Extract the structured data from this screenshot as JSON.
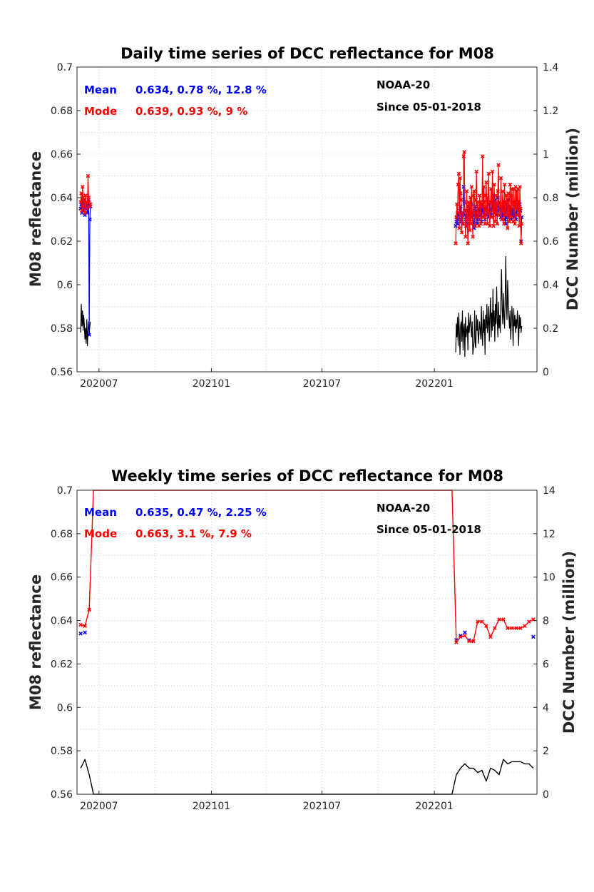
{
  "chart_data": [
    {
      "type": "line",
      "title": "Daily time series of DCC reflectance for M08",
      "ylabel": "M08 reflectance",
      "y2label": "DCC Number (million)",
      "ylim": [
        0.56,
        0.7
      ],
      "y2lim": [
        0,
        1.4
      ],
      "yticks": [
        "0.56",
        "0.58",
        "0.6",
        "0.62",
        "0.64",
        "0.66",
        "0.68",
        "0.7"
      ],
      "y2ticks": [
        "0",
        "0.2",
        "0.4",
        "0.6",
        "0.8",
        "1",
        "1.2",
        "1.4"
      ],
      "xticks": [
        "202007",
        "202101",
        "202107",
        "202201"
      ],
      "grid": true,
      "annotations": {
        "mean_label": "Mean",
        "mean_value": "0.634, 0.78 %, 12.8 %",
        "mode_label": "Mode",
        "mode_value": "0.639, 0.93 %, 9 %",
        "satellite": "NOAA-20",
        "since": "Since 05-01-2018"
      },
      "colors": {
        "mean": "#0000ff",
        "mode": "#ff0000",
        "count": "#000000"
      },
      "segments": [
        {
          "start": "2020-06-01",
          "step_days": 1,
          "mean": [
            0.635,
            0.637,
            0.633,
            0.638,
            0.639,
            0.634,
            0.636,
            0.632,
            0.637,
            0.638,
            0.635,
            0.633,
            0.636,
            0.639,
            0.577,
            0.63,
            0.636
          ],
          "mode": [
            0.638,
            0.642,
            0.634,
            0.645,
            0.64,
            0.636,
            0.639,
            0.633,
            0.641,
            0.637,
            0.638,
            0.635,
            0.65,
            0.64,
            0.638,
            0.636,
            0.637
          ],
          "count": [
            0.18,
            0.31,
            0.21,
            0.28,
            0.19,
            0.26,
            0.22,
            0.15,
            0.2,
            0.13,
            0.24,
            0.12,
            0.19,
            0.23,
            0.17,
            0.21,
            0.23
          ]
        },
        {
          "start": "2022-02-05",
          "step_days": 1,
          "mean": [
            0.627,
            0.629,
            0.631,
            0.628,
            0.632,
            0.633,
            0.63,
            0.634,
            0.636,
            0.629,
            0.631,
            0.628,
            0.633,
            0.645,
            0.638,
            0.632,
            0.63,
            0.627,
            0.634,
            0.631,
            0.628,
            0.636,
            0.632,
            0.63,
            0.635,
            0.633,
            0.637,
            0.631,
            0.634,
            0.629,
            0.626,
            0.632,
            0.636,
            0.634,
            0.631,
            0.628,
            0.633,
            0.635,
            0.63,
            0.634,
            0.637,
            0.632,
            0.629,
            0.636,
            0.634,
            0.631,
            0.638,
            0.633,
            0.63,
            0.635,
            0.636,
            0.632,
            0.639,
            0.634,
            0.631,
            0.637,
            0.633,
            0.635,
            0.632,
            0.638,
            0.634,
            0.641,
            0.636,
            0.633,
            0.639,
            0.635,
            0.632,
            0.637,
            0.634,
            0.64,
            0.636,
            0.632,
            0.638,
            0.635,
            0.631,
            0.633,
            0.63,
            0.636,
            0.634,
            0.632,
            0.638,
            0.63,
            0.628,
            0.637,
            0.634,
            0.631,
            0.639,
            0.635,
            0.632,
            0.636,
            0.633,
            0.63,
            0.635,
            0.632,
            0.638,
            0.634,
            0.631,
            0.637,
            0.633,
            0.63,
            0.636,
            0.632,
            0.638,
            0.635,
            0.632,
            0.637,
            0.634,
            0.62,
            0.631
          ],
          "mode": [
            0.619,
            0.631,
            0.637,
            0.633,
            0.646,
            0.651,
            0.626,
            0.649,
            0.642,
            0.639,
            0.624,
            0.633,
            0.628,
            0.659,
            0.661,
            0.634,
            0.622,
            0.63,
            0.643,
            0.627,
            0.619,
            0.638,
            0.637,
            0.625,
            0.64,
            0.628,
            0.645,
            0.634,
            0.622,
            0.641,
            0.643,
            0.633,
            0.627,
            0.639,
            0.652,
            0.631,
            0.638,
            0.633,
            0.627,
            0.641,
            0.638,
            0.628,
            0.636,
            0.637,
            0.659,
            0.631,
            0.645,
            0.632,
            0.628,
            0.641,
            0.647,
            0.634,
            0.628,
            0.64,
            0.651,
            0.633,
            0.627,
            0.638,
            0.644,
            0.631,
            0.652,
            0.634,
            0.627,
            0.646,
            0.636,
            0.629,
            0.641,
            0.637,
            0.628,
            0.643,
            0.655,
            0.632,
            0.638,
            0.636,
            0.649,
            0.63,
            0.634,
            0.643,
            0.637,
            0.628,
            0.646,
            0.634,
            0.632,
            0.641,
            0.638,
            0.626,
            0.642,
            0.635,
            0.629,
            0.646,
            0.641,
            0.631,
            0.644,
            0.637,
            0.629,
            0.644,
            0.638,
            0.628,
            0.645,
            0.635,
            0.643,
            0.632,
            0.644,
            0.634,
            0.627,
            0.645,
            0.635,
            0.619,
            0.628
          ],
          "count": [
            0.09,
            0.22,
            0.16,
            0.25,
            0.12,
            0.27,
            0.18,
            0.08,
            0.21,
            0.23,
            0.14,
            0.28,
            0.1,
            0.2,
            0.22,
            0.07,
            0.25,
            0.16,
            0.19,
            0.21,
            0.1,
            0.27,
            0.18,
            0.22,
            0.26,
            0.2,
            0.16,
            0.23,
            0.08,
            0.11,
            0.14,
            0.28,
            0.12,
            0.11,
            0.26,
            0.19,
            0.24,
            0.13,
            0.17,
            0.23,
            0.2,
            0.15,
            0.3,
            0.17,
            0.12,
            0.28,
            0.18,
            0.24,
            0.08,
            0.26,
            0.2,
            0.31,
            0.18,
            0.22,
            0.3,
            0.14,
            0.25,
            0.34,
            0.16,
            0.27,
            0.19,
            0.38,
            0.21,
            0.28,
            0.14,
            0.31,
            0.22,
            0.39,
            0.24,
            0.16,
            0.32,
            0.2,
            0.26,
            0.18,
            0.34,
            0.47,
            0.29,
            0.22,
            0.36,
            0.26,
            0.2,
            0.36,
            0.53,
            0.3,
            0.24,
            0.42,
            0.34,
            0.26,
            0.2,
            0.28,
            0.15,
            0.22,
            0.3,
            0.24,
            0.12,
            0.29,
            0.21,
            0.26,
            0.18,
            0.24,
            0.2,
            0.28,
            0.22,
            0.12,
            0.26,
            0.2,
            0.25,
            0.18,
            0.21
          ]
        }
      ]
    },
    {
      "type": "line",
      "title": "Weekly time series of DCC reflectance for M08",
      "ylabel": "M08 reflectance",
      "y2label": "DCC Number (million)",
      "ylim": [
        0.56,
        0.7
      ],
      "y2lim": [
        0,
        14
      ],
      "yticks": [
        "0.56",
        "0.58",
        "0.6",
        "0.62",
        "0.64",
        "0.66",
        "0.68",
        "0.7"
      ],
      "y2ticks": [
        "0",
        "2",
        "4",
        "6",
        "8",
        "10",
        "12",
        "14"
      ],
      "xticks": [
        "202007",
        "202101",
        "202107",
        "202201"
      ],
      "grid": true,
      "annotations": {
        "mean_label": "Mean",
        "mean_value": "0.635, 0.47 %, 2.25 %",
        "mode_label": "Mode",
        "mode_value": "0.663, 3.1 %, 7.9 %",
        "satellite": "NOAA-20",
        "since": "Since 05-01-2018"
      },
      "colors": {
        "mean": "#0000ff",
        "mode": "#ff0000",
        "count": "#000000"
      },
      "mean_points": [
        {
          "date": "2020-06-01",
          "value": 0.634
        },
        {
          "date": "2020-06-08",
          "value": 0.6345
        },
        {
          "date": "2022-02-06",
          "value": 0.631
        },
        {
          "date": "2022-02-13",
          "value": 0.633
        },
        {
          "date": "2022-02-20",
          "value": 0.6345
        },
        {
          "date": "2022-02-27",
          "value": 0.631
        },
        {
          "date": "2022-03-06",
          "value": 0.6305
        },
        {
          "date": "2022-06-12",
          "value": 0.6325
        }
      ],
      "mode_series": [
        {
          "date": "2020-06-01",
          "value": 0.638
        },
        {
          "date": "2020-06-08",
          "value": 0.6375
        },
        {
          "date": "2020-06-15",
          "value": 0.645
        },
        {
          "date": "2020-06-22",
          "value": 0.75
        },
        {
          "date": "2022-01-30",
          "value": 0.75
        },
        {
          "date": "2022-02-06",
          "value": 0.63
        },
        {
          "date": "2022-02-13",
          "value": 0.6325
        },
        {
          "date": "2022-02-20",
          "value": 0.633
        },
        {
          "date": "2022-02-27",
          "value": 0.6305
        },
        {
          "date": "2022-03-06",
          "value": 0.6305
        },
        {
          "date": "2022-03-13",
          "value": 0.6395
        },
        {
          "date": "2022-03-20",
          "value": 0.6395
        },
        {
          "date": "2022-03-27",
          "value": 0.6375
        },
        {
          "date": "2022-04-03",
          "value": 0.6325
        },
        {
          "date": "2022-04-10",
          "value": 0.6365
        },
        {
          "date": "2022-04-17",
          "value": 0.6405
        },
        {
          "date": "2022-04-24",
          "value": 0.6405
        },
        {
          "date": "2022-05-01",
          "value": 0.6365
        },
        {
          "date": "2022-05-08",
          "value": 0.6365
        },
        {
          "date": "2022-05-15",
          "value": 0.6365
        },
        {
          "date": "2022-05-22",
          "value": 0.6365
        },
        {
          "date": "2022-05-29",
          "value": 0.6375
        },
        {
          "date": "2022-06-05",
          "value": 0.6395
        },
        {
          "date": "2022-06-12",
          "value": 0.6405
        }
      ],
      "count_series": [
        {
          "date": "2020-06-01",
          "value": 1.2
        },
        {
          "date": "2020-06-08",
          "value": 1.6
        },
        {
          "date": "2020-06-15",
          "value": 0.9
        },
        {
          "date": "2020-06-22",
          "value": 0
        },
        {
          "date": "2022-01-30",
          "value": 0
        },
        {
          "date": "2022-02-06",
          "value": 0.9
        },
        {
          "date": "2022-02-13",
          "value": 1.2
        },
        {
          "date": "2022-02-20",
          "value": 1.4
        },
        {
          "date": "2022-02-27",
          "value": 1.2
        },
        {
          "date": "2022-03-06",
          "value": 1.2
        },
        {
          "date": "2022-03-13",
          "value": 1.0
        },
        {
          "date": "2022-03-20",
          "value": 1.1
        },
        {
          "date": "2022-03-27",
          "value": 0.6
        },
        {
          "date": "2022-04-03",
          "value": 1.2
        },
        {
          "date": "2022-04-10",
          "value": 1.1
        },
        {
          "date": "2022-04-17",
          "value": 0.9
        },
        {
          "date": "2022-04-24",
          "value": 1.6
        },
        {
          "date": "2022-05-01",
          "value": 1.4
        },
        {
          "date": "2022-05-08",
          "value": 1.5
        },
        {
          "date": "2022-05-15",
          "value": 1.5
        },
        {
          "date": "2022-05-22",
          "value": 1.5
        },
        {
          "date": "2022-05-29",
          "value": 1.4
        },
        {
          "date": "2022-06-05",
          "value": 1.4
        },
        {
          "date": "2022-06-12",
          "value": 1.2
        }
      ]
    }
  ]
}
